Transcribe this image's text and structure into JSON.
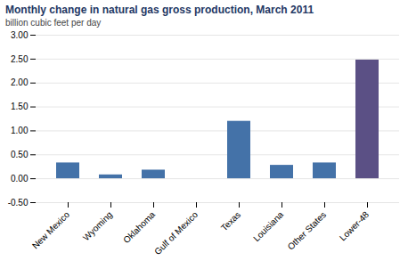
{
  "chart_data": {
    "type": "bar",
    "title": "Monthly change in natural gas gross production, March 2011",
    "ylabel": "billion cubic feet per day",
    "categories": [
      "New Mexico",
      "Wyoming",
      "Oklahoma",
      "Gulf of Mexico",
      "Texas",
      "Louisiana",
      "Other States",
      "Lower-48"
    ],
    "values": [
      0.33,
      0.08,
      0.18,
      0.0,
      1.2,
      0.28,
      0.33,
      2.48
    ],
    "colors": [
      "#4472a8",
      "#4472a8",
      "#4472a8",
      "#4472a8",
      "#4472a8",
      "#4472a8",
      "#4472a8",
      "#5b5085"
    ],
    "ylim": [
      -0.5,
      3.0
    ],
    "yticks": [
      {
        "value": -0.5,
        "label": "-0.50"
      },
      {
        "value": 0,
        "label": "0.00"
      },
      {
        "value": 0.5,
        "label": "0.50"
      },
      {
        "value": 1,
        "label": "1.00"
      },
      {
        "value": 1.5,
        "label": "1.50"
      },
      {
        "value": 2,
        "label": "2.00"
      },
      {
        "value": 2.5,
        "label": "2.50"
      },
      {
        "value": 3,
        "label": "3.00"
      }
    ],
    "grid": true
  }
}
